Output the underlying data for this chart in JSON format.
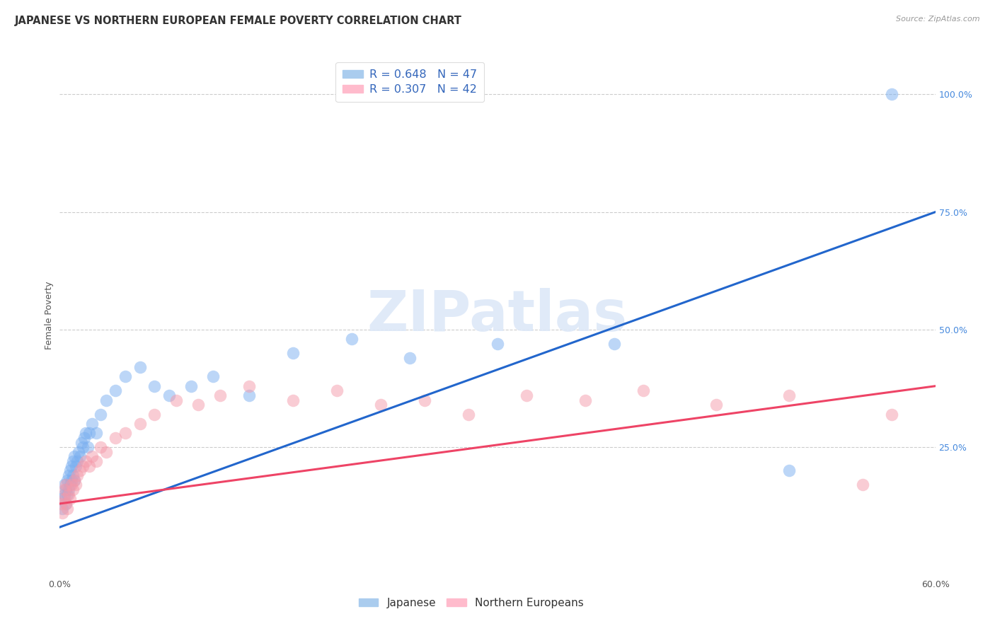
{
  "title": "JAPANESE VS NORTHERN EUROPEAN FEMALE POVERTY CORRELATION CHART",
  "source": "Source: ZipAtlas.com",
  "ylabel": "Female Poverty",
  "xlim": [
    0.0,
    0.6
  ],
  "ylim": [
    -0.02,
    1.08
  ],
  "yticks_right": [
    0.25,
    0.5,
    0.75,
    1.0
  ],
  "ytick_right_labels": [
    "25.0%",
    "50.0%",
    "75.0%",
    "100.0%"
  ],
  "watermark": "ZIPatlas",
  "blue_color": "#7aaff0",
  "pink_color": "#f59aaa",
  "blue_line_color": "#2266cc",
  "pink_line_color": "#ee4466",
  "japanese_x": [
    0.001,
    0.002,
    0.003,
    0.003,
    0.004,
    0.004,
    0.005,
    0.005,
    0.006,
    0.006,
    0.007,
    0.007,
    0.008,
    0.008,
    0.009,
    0.009,
    0.01,
    0.01,
    0.011,
    0.012,
    0.013,
    0.014,
    0.015,
    0.016,
    0.017,
    0.018,
    0.019,
    0.02,
    0.022,
    0.025,
    0.028,
    0.032,
    0.038,
    0.045,
    0.055,
    0.065,
    0.075,
    0.09,
    0.105,
    0.13,
    0.16,
    0.2,
    0.24,
    0.3,
    0.38,
    0.5,
    0.57
  ],
  "japanese_y": [
    0.14,
    0.12,
    0.15,
    0.17,
    0.13,
    0.16,
    0.15,
    0.18,
    0.16,
    0.19,
    0.17,
    0.2,
    0.18,
    0.21,
    0.19,
    0.22,
    0.18,
    0.23,
    0.21,
    0.22,
    0.24,
    0.23,
    0.26,
    0.25,
    0.27,
    0.28,
    0.25,
    0.28,
    0.3,
    0.28,
    0.32,
    0.35,
    0.37,
    0.4,
    0.42,
    0.38,
    0.36,
    0.38,
    0.4,
    0.36,
    0.45,
    0.48,
    0.44,
    0.47,
    0.47,
    0.2,
    1.0
  ],
  "ne_x": [
    0.001,
    0.002,
    0.003,
    0.003,
    0.004,
    0.004,
    0.005,
    0.006,
    0.007,
    0.008,
    0.009,
    0.01,
    0.011,
    0.012,
    0.014,
    0.016,
    0.018,
    0.02,
    0.022,
    0.025,
    0.028,
    0.032,
    0.038,
    0.045,
    0.055,
    0.065,
    0.08,
    0.095,
    0.11,
    0.13,
    0.16,
    0.19,
    0.22,
    0.25,
    0.28,
    0.32,
    0.36,
    0.4,
    0.45,
    0.5,
    0.55,
    0.57
  ],
  "ne_y": [
    0.13,
    0.11,
    0.14,
    0.16,
    0.13,
    0.17,
    0.12,
    0.15,
    0.14,
    0.17,
    0.16,
    0.18,
    0.17,
    0.19,
    0.2,
    0.21,
    0.22,
    0.21,
    0.23,
    0.22,
    0.25,
    0.24,
    0.27,
    0.28,
    0.3,
    0.32,
    0.35,
    0.34,
    0.36,
    0.38,
    0.35,
    0.37,
    0.34,
    0.35,
    0.32,
    0.36,
    0.35,
    0.37,
    0.34,
    0.36,
    0.17,
    0.32
  ],
  "blue_line_x": [
    0.0,
    0.6
  ],
  "blue_line_y": [
    0.08,
    0.75
  ],
  "pink_line_x": [
    0.0,
    0.6
  ],
  "pink_line_y": [
    0.13,
    0.38
  ],
  "grid_yticks": [
    0.25,
    0.5,
    0.75,
    1.0
  ],
  "bg_color": "#ffffff",
  "title_fontsize": 10.5,
  "axis_label_fontsize": 9,
  "tick_fontsize": 9
}
